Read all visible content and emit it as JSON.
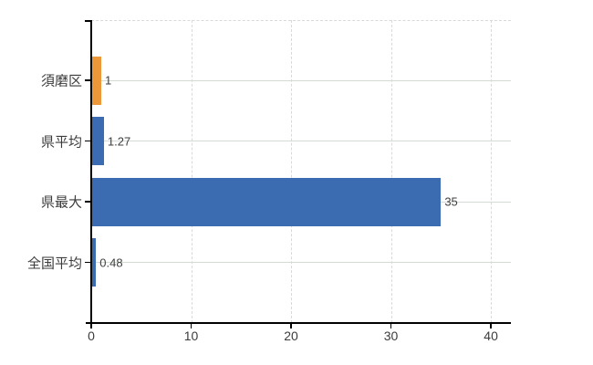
{
  "chart_data": {
    "type": "bar",
    "orientation": "horizontal",
    "title": "",
    "xlabel": "",
    "ylabel": "",
    "categories": [
      "須磨区",
      "県平均",
      "県最大",
      "全国平均"
    ],
    "values": [
      1,
      1.27,
      35,
      0.48
    ],
    "value_labels": [
      "1",
      "1.27",
      "35",
      "0.48"
    ],
    "bar_colors": [
      "#EC9738",
      "#3B6CB1",
      "#3B6CB1",
      "#3B6CB1"
    ],
    "xlim": [
      0,
      42
    ],
    "x_ticks": [
      0,
      10,
      20,
      30,
      40
    ],
    "legend": "none",
    "grid": {
      "vertical": "dashed",
      "horizontal_row_lines": "solid",
      "top_border": "dashed"
    },
    "colors": {
      "background": "#ffffff",
      "axis": "#000000",
      "grid_vertical": "#d9d9d9",
      "grid_row": "#d4dbd4",
      "text": "#3c3c3c"
    }
  }
}
